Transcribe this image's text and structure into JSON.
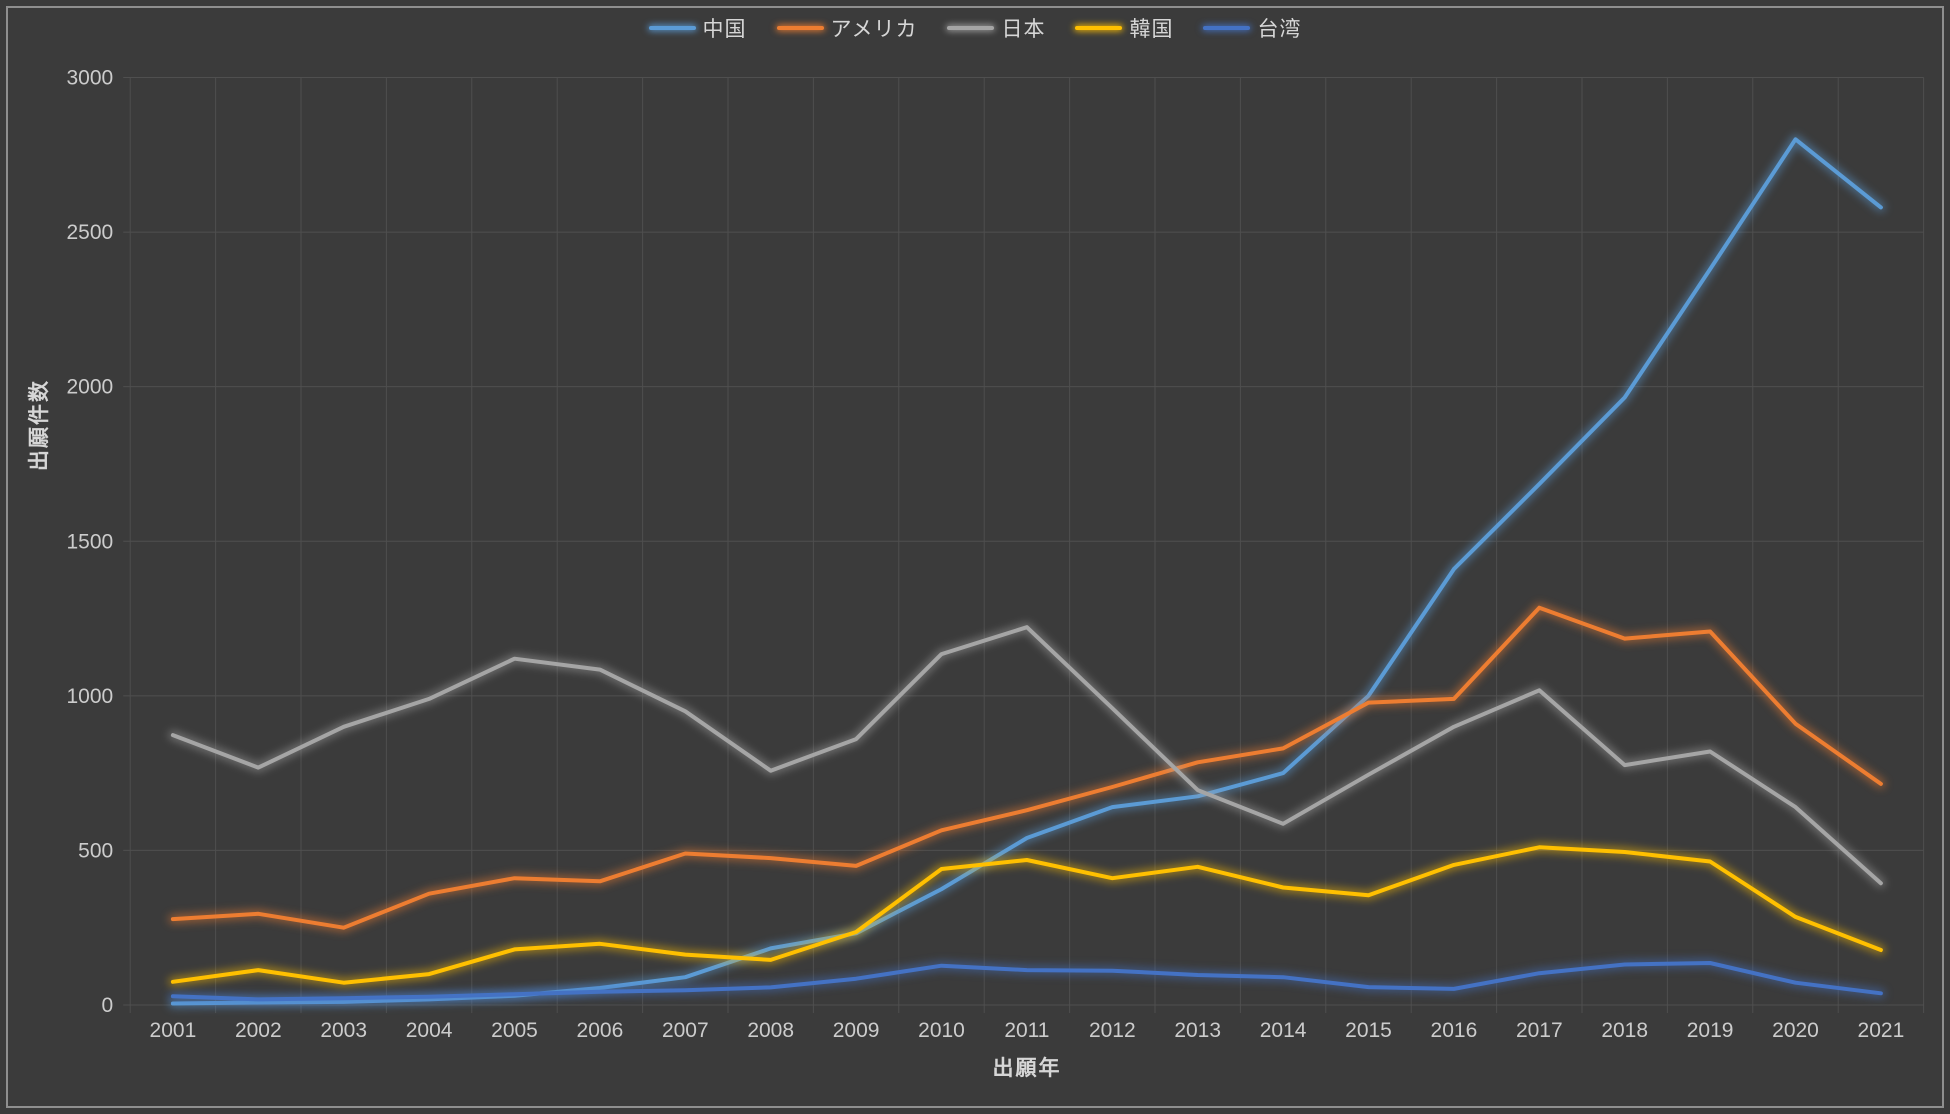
{
  "chart_data": {
    "type": "line",
    "title": "",
    "xlabel": "出願年",
    "ylabel": "出願件数",
    "x": [
      2001,
      2002,
      2003,
      2004,
      2005,
      2006,
      2007,
      2008,
      2009,
      2010,
      2011,
      2012,
      2013,
      2014,
      2015,
      2016,
      2017,
      2018,
      2019,
      2020,
      2021
    ],
    "ylim": [
      0,
      3000
    ],
    "ytick_step": 500,
    "grid": true,
    "legend_position": "top-center",
    "series": [
      {
        "name": "中国",
        "slug": "china",
        "color": "#5B9BD5",
        "values": [
          5,
          8,
          10,
          18,
          30,
          55,
          90,
          183,
          232,
          375,
          540,
          640,
          675,
          750,
          1000,
          1410,
          1685,
          1965,
          2380,
          2800,
          2580
        ]
      },
      {
        "name": "アメリカ",
        "slug": "usa",
        "color": "#ED7D31",
        "values": [
          278,
          295,
          250,
          360,
          410,
          400,
          490,
          475,
          450,
          565,
          630,
          705,
          785,
          830,
          978,
          990,
          1285,
          1185,
          1208,
          910,
          715
        ]
      },
      {
        "name": "日本",
        "slug": "japan",
        "color": "#A5A5A5",
        "values": [
          873,
          768,
          900,
          990,
          1120,
          1085,
          950,
          758,
          860,
          1135,
          1222,
          960,
          695,
          586,
          745,
          900,
          1018,
          776,
          820,
          640,
          394
        ]
      },
      {
        "name": "韓国",
        "slug": "korea",
        "color": "#FFC000",
        "values": [
          75,
          113,
          72,
          100,
          180,
          198,
          163,
          146,
          236,
          440,
          469,
          410,
          447,
          380,
          355,
          453,
          510,
          495,
          464,
          285,
          178
        ]
      },
      {
        "name": "台湾",
        "slug": "taiwan",
        "color": "#4472C4",
        "values": [
          28,
          18,
          22,
          27,
          35,
          43,
          48,
          57,
          85,
          127,
          113,
          111,
          97,
          90,
          58,
          52,
          103,
          131,
          136,
          72,
          38
        ]
      }
    ]
  },
  "style": {
    "background": "#3b3b3b",
    "grid_color": "#4f4f4f",
    "text_color": "#cccccc",
    "frame_color": "#8f8f8f"
  }
}
